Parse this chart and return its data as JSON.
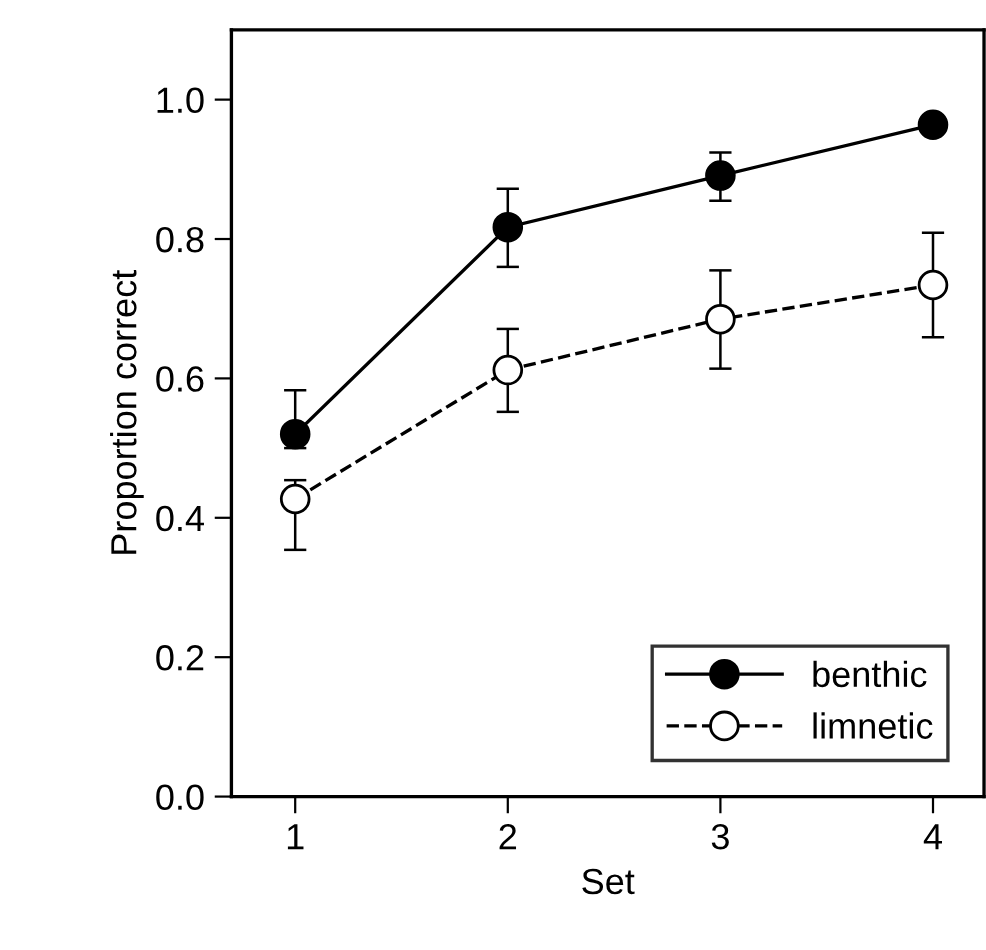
{
  "chart_data": {
    "type": "line",
    "xlabel": "Set",
    "ylabel": "Proportion correct",
    "x": [
      1,
      2,
      3,
      4
    ],
    "xlim": [
      0.7,
      4.24
    ],
    "xticks": [
      1,
      2,
      3,
      4
    ],
    "ylim": [
      0,
      1.1
    ],
    "yticks": [
      {
        "value": 0,
        "label": "0.0"
      },
      0.2,
      0.4,
      0.6,
      0.8,
      {
        "value": 1,
        "label": "1.0"
      }
    ],
    "legend": "bottom right",
    "grid": false,
    "series": [
      {
        "name": "benthic",
        "color": "#000000",
        "marker": "circle",
        "line_style": "solid",
        "values": [
          0.52,
          0.817,
          0.891,
          0.964
        ],
        "errors": [
          [
            0.5,
            0.583
          ],
          [
            0.76,
            0.872
          ],
          [
            0.855,
            0.924
          ],
          null
        ]
      },
      {
        "name": "limnetic",
        "color": "#000000",
        "marker": "circle",
        "line_style": "dashed",
        "values": [
          0.427,
          0.612,
          0.685,
          0.734
        ],
        "errors": [
          [
            0.354,
            0.454
          ],
          [
            0.552,
            0.671
          ],
          [
            0.614,
            0.755
          ],
          [
            0.659,
            0.809
          ]
        ]
      }
    ]
  }
}
